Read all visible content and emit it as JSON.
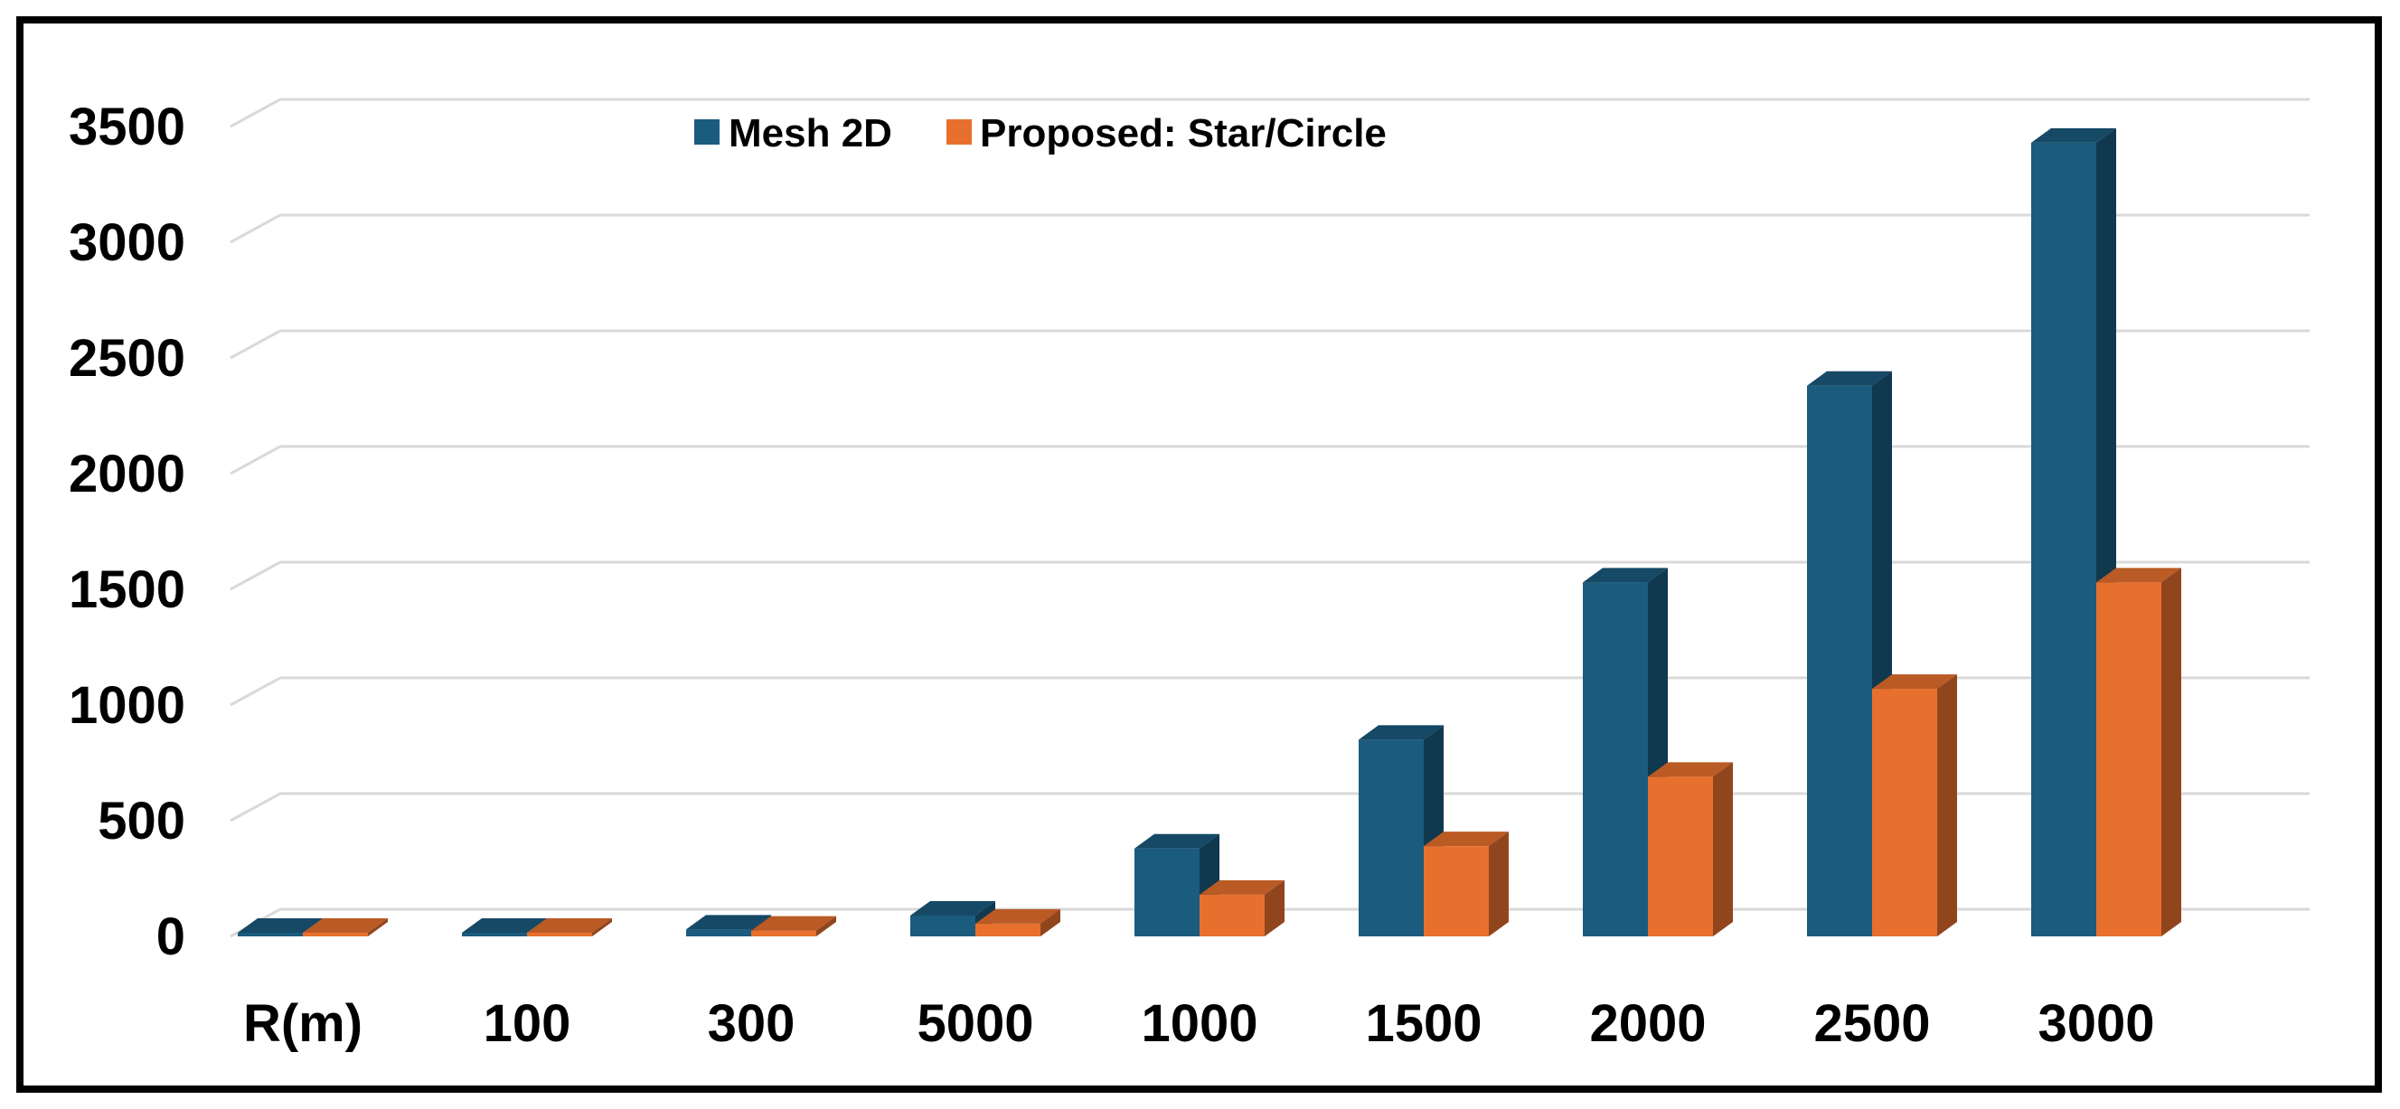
{
  "chart_data": {
    "type": "bar",
    "style": "3d-clustered-column",
    "categories": [
      "R(m)",
      "100",
      "300",
      "5000",
      "1000",
      "1500",
      "2000",
      "2500",
      "3000"
    ],
    "series": [
      {
        "name": "Mesh 2D",
        "color": "#1a5b7e",
        "values": [
          2,
          5,
          30,
          90,
          380,
          850,
          1530,
          2380,
          3430
        ]
      },
      {
        "name": "Proposed: Star/Circle",
        "color": "#e8702e",
        "values": [
          1,
          3,
          25,
          55,
          180,
          390,
          690,
          1070,
          1530
        ]
      }
    ],
    "yticks": [
      "0",
      "500",
      "1000",
      "1500",
      "2000",
      "2500",
      "3000",
      "3500"
    ],
    "ylim": [
      0,
      3500
    ],
    "grid": true,
    "legend": "top-center",
    "title": "",
    "xlabel": "",
    "ylabel": ""
  }
}
